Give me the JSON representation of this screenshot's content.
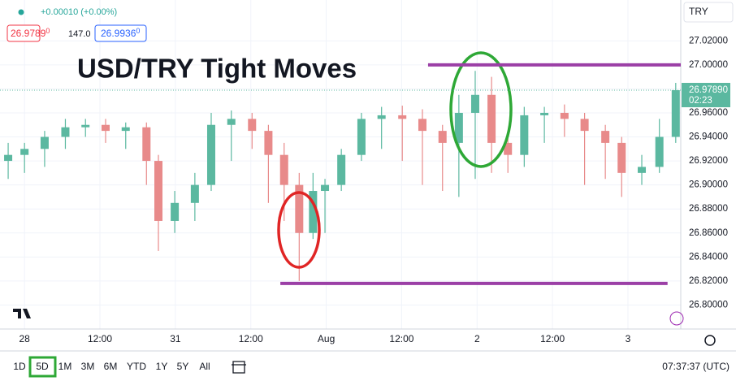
{
  "header": {
    "change": "+0.00010 (+0.00%)",
    "bid": "26.9789",
    "bid_suffix": "0",
    "spread": "147.0",
    "ask": "26.9936",
    "ask_suffix": "0",
    "currency": "TRY"
  },
  "toolbar": {
    "timeframes": [
      "1D",
      "5D",
      "1M",
      "3M",
      "6M",
      "YTD",
      "1Y",
      "5Y",
      "All"
    ],
    "active_timeframe": 1,
    "clock": "07:37:37 (UTC)"
  },
  "chart_data": {
    "type": "candlestick",
    "title": "USD/TRY Tight Moves",
    "up_color": "#5bb8a0",
    "down_color": "#e88a8a",
    "x": [
      -2.6,
      0,
      3.2,
      6.5,
      9.7,
      12.9,
      16.1,
      19.4,
      21.3,
      23.9,
      27.1,
      29.7,
      32.9,
      36.2,
      38.8,
      41.3,
      43.7,
      45.9,
      47.8,
      50.4,
      53.6,
      56.8,
      60.1,
      63.3,
      66.5,
      69.1,
      71.7,
      74.3,
      76.9,
      79.5,
      82.7,
      85.9,
      89.1,
      92.4,
      95,
      98.2,
      101,
      103.6
    ],
    "open": [
      26.92,
      26.925,
      26.93,
      26.94,
      26.948,
      26.95,
      26.945,
      26.948,
      26.92,
      26.87,
      26.885,
      26.9,
      26.95,
      26.955,
      26.945,
      26.925,
      26.9,
      26.86,
      26.895,
      26.9,
      26.925,
      26.955,
      26.958,
      26.955,
      26.945,
      26.935,
      26.96,
      26.975,
      26.935,
      26.925,
      26.958,
      26.96,
      26.955,
      26.945,
      26.935,
      26.91,
      26.915,
      26.94
    ],
    "high": [
      26.935,
      26.935,
      26.945,
      26.955,
      26.955,
      26.955,
      26.952,
      26.952,
      26.925,
      26.895,
      26.91,
      26.96,
      26.962,
      26.96,
      26.95,
      26.935,
      26.91,
      26.91,
      26.905,
      26.93,
      26.96,
      26.965,
      26.966,
      26.963,
      26.95,
      26.975,
      26.995,
      26.99,
      26.945,
      26.965,
      26.965,
      26.967,
      26.96,
      26.95,
      26.94,
      26.925,
      26.955,
      26.985
    ],
    "low": [
      26.905,
      26.91,
      26.915,
      26.93,
      26.94,
      26.935,
      26.93,
      26.9,
      26.845,
      26.86,
      26.87,
      26.895,
      26.92,
      26.93,
      26.885,
      26.87,
      26.82,
      26.855,
      26.86,
      26.895,
      26.92,
      26.93,
      26.92,
      26.9,
      26.895,
      26.89,
      26.905,
      26.91,
      26.91,
      26.915,
      26.935,
      26.94,
      26.9,
      26.905,
      26.89,
      26.9,
      26.91,
      26.935
    ],
    "close": [
      26.925,
      26.93,
      26.94,
      26.948,
      26.95,
      26.945,
      26.948,
      26.92,
      26.87,
      26.885,
      26.9,
      26.95,
      26.955,
      26.945,
      26.925,
      26.9,
      26.86,
      26.895,
      26.9,
      26.925,
      26.955,
      26.958,
      26.955,
      26.945,
      26.935,
      26.96,
      26.975,
      26.935,
      26.925,
      26.958,
      26.96,
      26.955,
      26.945,
      26.935,
      26.91,
      26.915,
      26.94,
      26.9789
    ],
    "last_price": {
      "value": 26.9789,
      "label": "26.97890"
    },
    "countdown": "02:23",
    "hlines": [
      {
        "value": 27.0,
        "from": 64.2,
        "to": 104.4,
        "color": "#9b3fa6"
      },
      {
        "value": 26.818,
        "from": 40.7,
        "to": 102.3,
        "color": "#9b3fa6"
      }
    ],
    "xlim": [
      -3.9,
      104.4
    ],
    "ylim": [
      26.78,
      27.054
    ],
    "xticks": [
      {
        "value": 0,
        "label": "28"
      },
      {
        "value": 12,
        "label": "12:00"
      },
      {
        "value": 24,
        "label": "31"
      },
      {
        "value": 36,
        "label": "12:00"
      },
      {
        "value": 48,
        "label": "Aug"
      },
      {
        "value": 60,
        "label": "12:00"
      },
      {
        "value": 72,
        "label": "2"
      },
      {
        "value": 84,
        "label": "12:00"
      },
      {
        "value": 96,
        "label": "3"
      }
    ],
    "yticks": [
      {
        "value": 26.8,
        "label": "26.80000"
      },
      {
        "value": 26.82,
        "label": "26.82000"
      },
      {
        "value": 26.84,
        "label": "26.84000"
      },
      {
        "value": 26.86,
        "label": "26.86000"
      },
      {
        "value": 26.88,
        "label": "26.88000"
      },
      {
        "value": 26.9,
        "label": "26.90000"
      },
      {
        "value": 26.92,
        "label": "26.92000"
      },
      {
        "value": 26.94,
        "label": "26.94000"
      },
      {
        "value": 26.96,
        "label": "26.96000"
      },
      {
        "value": 26.98,
        "label": "26.98000"
      },
      {
        "value": 27.0,
        "label": "27.00000"
      },
      {
        "value": 27.02,
        "label": "27.02000"
      }
    ],
    "grid": true
  }
}
